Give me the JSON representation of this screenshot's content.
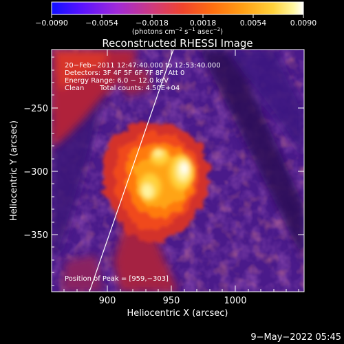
{
  "colorbar": {
    "ticks": [
      "−0.0090",
      "−0.0054",
      "−0.0018",
      "0.0018",
      "0.0054",
      "0.0090"
    ],
    "unit_main": "(photons cm",
    "unit_sup1": "−2",
    "unit_mid1": " s",
    "unit_sup2": "−1",
    "unit_mid2": " asec",
    "unit_sup3": "−2",
    "unit_end": ")",
    "range": [
      -0.009,
      0.009
    ],
    "colormap": [
      "#1010ff",
      "#5a13ff",
      "#a02ad8",
      "#cf3a7e",
      "#f0442d",
      "#ff6f10",
      "#ff9f15",
      "#ffd23b",
      "#fff7a0",
      "#ffffff"
    ]
  },
  "plot": {
    "title": "Reconstructed RHESSI Image",
    "xlabel": "Heliocentric X (arcsec)",
    "ylabel": "Heliocentric Y (arcsec)",
    "x_ticks": [
      "900",
      "950",
      "1000"
    ],
    "y_ticks": [
      "−250",
      "−300",
      "−350"
    ],
    "info_lines": [
      "20−Feb−2011 12:47:40.000 to 12:53:40.000",
      "Detectors: 3F 4F 5F 6F 7F 8F, Att 0",
      "Energy Range: 6.0 − 12.0 keV"
    ],
    "clean_label": "Clean",
    "total_counts": "Total counts: 4.50E+04",
    "peak_text": "Position of Peak = [959,−303]",
    "limb_color": "#ffffff"
  },
  "footer": {
    "timestamp": "9−May−2022 05:45"
  }
}
